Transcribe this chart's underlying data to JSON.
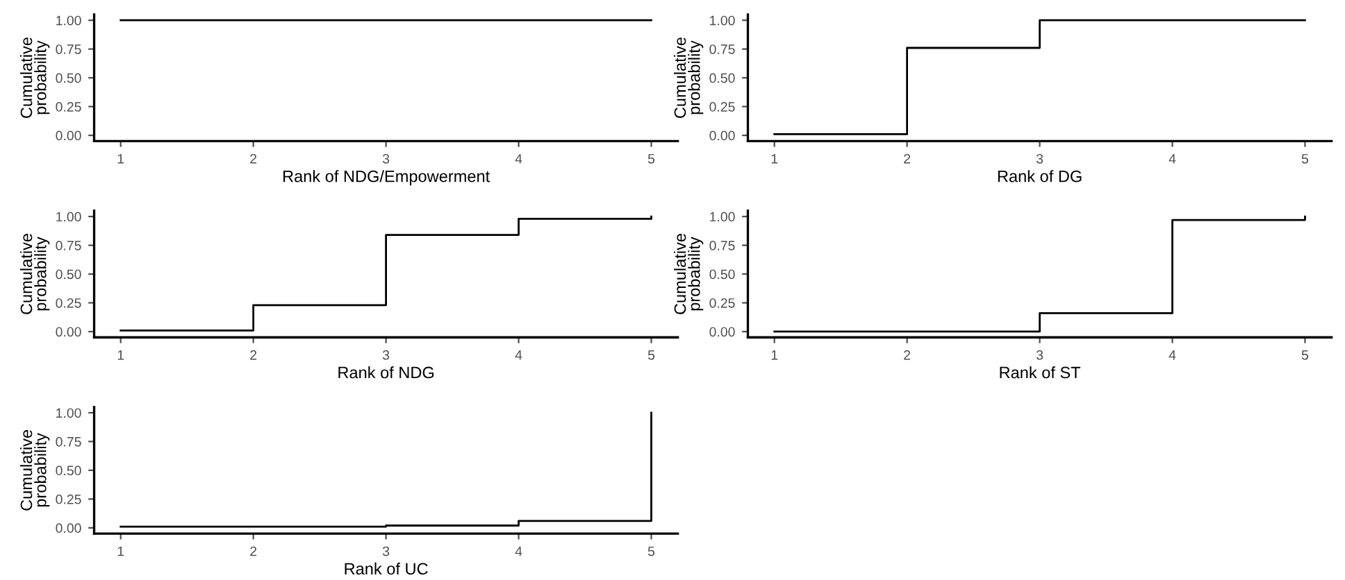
{
  "chart_data": [
    {
      "type": "step",
      "x": [
        1,
        2,
        3,
        4,
        5
      ],
      "values": [
        1.0,
        1.0,
        1.0,
        1.0,
        1.0
      ],
      "color": "#000000",
      "xlabel": "Rank of NDG/Empowerment",
      "ylabel": "Cumulative\nprobability",
      "xlim": [
        0.8,
        5.2
      ],
      "ylim": [
        -0.05,
        1.05
      ],
      "xticks": [
        1,
        2,
        3,
        4,
        5
      ],
      "yticks": [
        {
          "value": 0,
          "label": "0.00"
        },
        {
          "value": 0.25,
          "label": "0.25"
        },
        {
          "value": 0.5,
          "label": "0.50"
        },
        {
          "value": 0.75,
          "label": "0.75"
        },
        {
          "value": 1,
          "label": "1.00"
        }
      ],
      "grid": false
    },
    {
      "type": "step",
      "x": [
        1,
        2,
        3,
        4,
        5
      ],
      "values": [
        0.01,
        0.76,
        1.0,
        1.0,
        1.0
      ],
      "color": "#000000",
      "xlabel": "Rank of DG",
      "ylabel": "Cumulative\nprobability",
      "xlim": [
        0.8,
        5.2
      ],
      "ylim": [
        -0.05,
        1.05
      ],
      "xticks": [
        1,
        2,
        3,
        4,
        5
      ],
      "yticks": [
        {
          "value": 0,
          "label": "0.00"
        },
        {
          "value": 0.25,
          "label": "0.25"
        },
        {
          "value": 0.5,
          "label": "0.50"
        },
        {
          "value": 0.75,
          "label": "0.75"
        },
        {
          "value": 1,
          "label": "1.00"
        }
      ],
      "grid": false
    },
    {
      "type": "step",
      "x": [
        1,
        2,
        3,
        4,
        5
      ],
      "values": [
        0.01,
        0.23,
        0.84,
        0.98,
        1.0
      ],
      "color": "#000000",
      "xlabel": "Rank of NDG",
      "ylabel": "Cumulative\nprobability",
      "xlim": [
        0.8,
        5.2
      ],
      "ylim": [
        -0.05,
        1.05
      ],
      "xticks": [
        1,
        2,
        3,
        4,
        5
      ],
      "yticks": [
        {
          "value": 0,
          "label": "0.00"
        },
        {
          "value": 0.25,
          "label": "0.25"
        },
        {
          "value": 0.5,
          "label": "0.50"
        },
        {
          "value": 0.75,
          "label": "0.75"
        },
        {
          "value": 1,
          "label": "1.00"
        }
      ],
      "grid": false
    },
    {
      "type": "step",
      "x": [
        1,
        2,
        3,
        4,
        5
      ],
      "values": [
        0.0,
        0.0,
        0.16,
        0.97,
        1.0
      ],
      "color": "#000000",
      "xlabel": "Rank of ST",
      "ylabel": "Cumulative\nprobability",
      "xlim": [
        0.8,
        5.2
      ],
      "ylim": [
        -0.05,
        1.05
      ],
      "xticks": [
        1,
        2,
        3,
        4,
        5
      ],
      "yticks": [
        {
          "value": 0,
          "label": "0.00"
        },
        {
          "value": 0.25,
          "label": "0.25"
        },
        {
          "value": 0.5,
          "label": "0.50"
        },
        {
          "value": 0.75,
          "label": "0.75"
        },
        {
          "value": 1,
          "label": "1.00"
        }
      ],
      "grid": false
    },
    {
      "type": "step",
      "x": [
        1,
        2,
        3,
        4,
        5
      ],
      "values": [
        0.01,
        0.01,
        0.02,
        0.06,
        1.0
      ],
      "color": "#000000",
      "xlabel": "Rank of UC",
      "ylabel": "Cumulative\nprobability",
      "xlim": [
        0.8,
        5.2
      ],
      "ylim": [
        -0.05,
        1.05
      ],
      "xticks": [
        1,
        2,
        3,
        4,
        5
      ],
      "yticks": [
        {
          "value": 0,
          "label": "0.00"
        },
        {
          "value": 0.25,
          "label": "0.25"
        },
        {
          "value": 0.5,
          "label": "0.50"
        },
        {
          "value": 0.75,
          "label": "0.75"
        },
        {
          "value": 1,
          "label": "1.00"
        }
      ],
      "grid": false
    }
  ]
}
